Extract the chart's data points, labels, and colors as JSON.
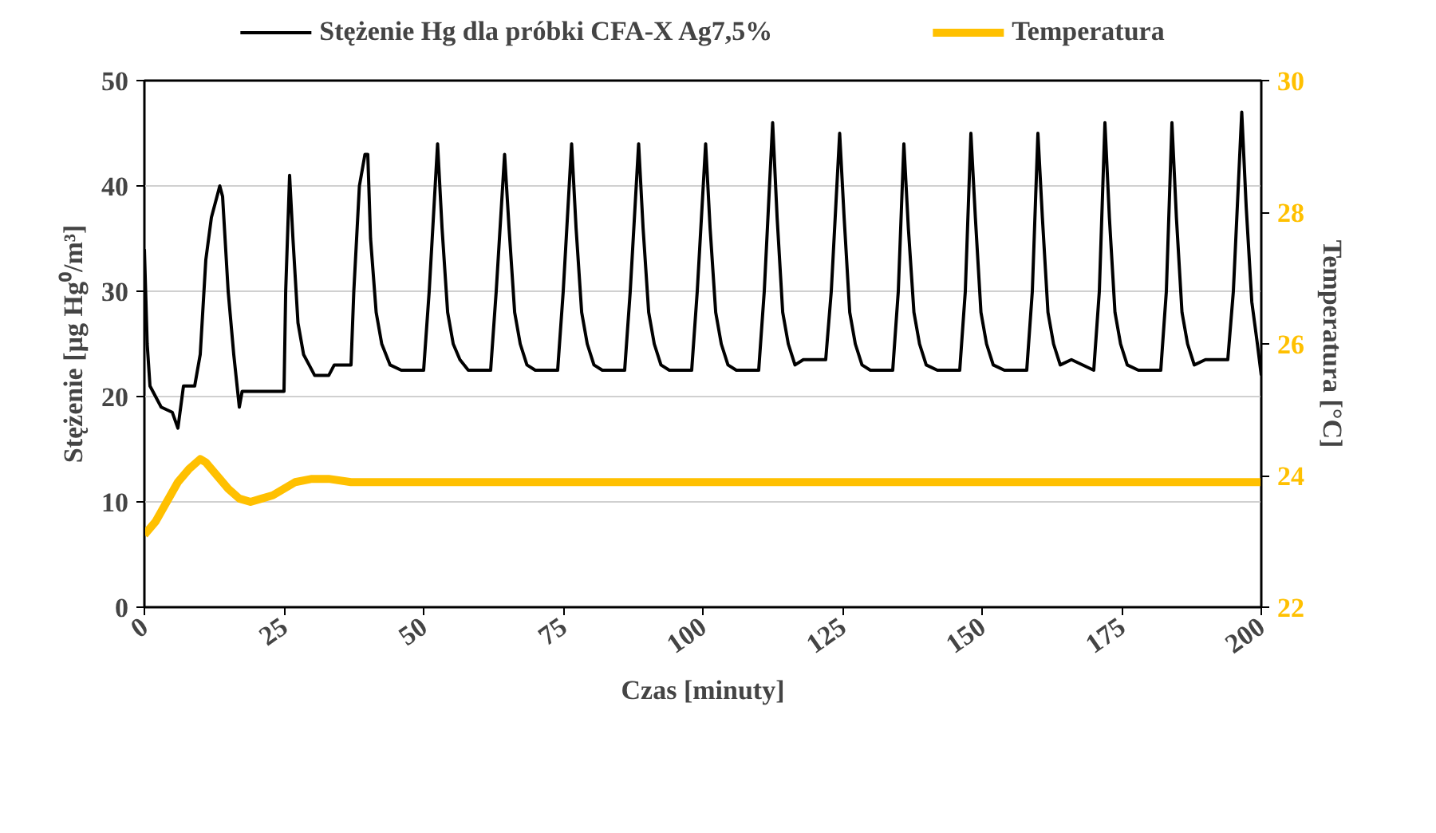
{
  "chart_data": {
    "type": "line",
    "xlabel": "Czas [minuty]",
    "ylabel": "Stężenie [µg Hg⁰/m³]",
    "y2label": "Temperatura [°C]",
    "xlim": [
      0,
      200
    ],
    "xticks": [
      0,
      25,
      50,
      75,
      100,
      125,
      150,
      175,
      200
    ],
    "ylim": [
      0,
      50
    ],
    "yticks": [
      0,
      10,
      20,
      30,
      40,
      50
    ],
    "y2lim": [
      22,
      30
    ],
    "y2ticks": [
      22,
      24,
      26,
      28,
      30
    ],
    "grid": "y",
    "legend": "top",
    "line_style": "solid",
    "marker": "none",
    "series": [
      {
        "name": "Stężenie Hg dla próbki CFA-X Ag7,5%",
        "color": "#000000",
        "x": [
          0,
          0.5,
          1,
          2,
          3,
          5,
          6,
          6.5,
          7,
          9,
          10,
          11,
          12,
          13,
          13.5,
          14,
          15,
          16,
          17,
          17.5,
          25,
          25.3,
          26,
          26.6,
          27.5,
          28.5,
          29.5,
          30.5,
          33,
          34,
          37,
          37.5,
          38.5,
          39.5,
          40,
          40.5,
          41.5,
          42.5,
          44,
          46,
          50,
          51,
          52.5,
          53.3,
          54.3,
          55.3,
          56.5,
          58,
          62,
          63,
          64.5,
          65.3,
          66.3,
          67.3,
          68.5,
          70,
          74,
          75,
          76.5,
          77.3,
          78.3,
          79.3,
          80.5,
          82,
          86,
          87,
          88.5,
          89.3,
          90.3,
          91.3,
          92.5,
          94,
          98,
          99,
          100.5,
          101.3,
          102.3,
          103.3,
          104.5,
          106,
          110,
          111,
          112.5,
          113.3,
          114.3,
          115.3,
          116.5,
          118,
          122,
          123,
          124.5,
          125.3,
          126.3,
          127.3,
          128.5,
          130,
          134,
          135,
          136,
          136.8,
          137.8,
          138.8,
          140,
          142,
          146,
          147,
          148,
          148.8,
          149.8,
          150.8,
          152,
          154,
          158,
          159,
          160,
          160.8,
          161.8,
          162.8,
          164,
          166,
          170,
          171,
          172,
          172.8,
          173.8,
          174.8,
          176,
          178,
          182,
          183,
          184,
          184.8,
          185.8,
          186.8,
          188,
          190,
          194,
          195,
          196.5,
          197.3,
          198.3,
          199.3,
          200
        ],
        "values": [
          34,
          25,
          21,
          20,
          19,
          18.5,
          17,
          19,
          21,
          21,
          24,
          33,
          37,
          39,
          40,
          39,
          30,
          24,
          19,
          20.5,
          20.5,
          30,
          41,
          35,
          27,
          24,
          23,
          22,
          22,
          23,
          23,
          30,
          40,
          43,
          43,
          35,
          28,
          25,
          23,
          22.5,
          22.5,
          30,
          44,
          36,
          28,
          25,
          23.5,
          22.5,
          22.5,
          30,
          43,
          36,
          28,
          25,
          23,
          22.5,
          22.5,
          30,
          44,
          36,
          28,
          25,
          23,
          22.5,
          22.5,
          30,
          44,
          36,
          28,
          25,
          23,
          22.5,
          22.5,
          30,
          44,
          36,
          28,
          25,
          23,
          22.5,
          22.5,
          30,
          46,
          37,
          28,
          25,
          23,
          23.5,
          23.5,
          30,
          45,
          37,
          28,
          25,
          23,
          22.5,
          22.5,
          30,
          44,
          36,
          28,
          25,
          23,
          22.5,
          22.5,
          30,
          45,
          37,
          28,
          25,
          23,
          22.5,
          22.5,
          30,
          45,
          37,
          28,
          25,
          23,
          23.5,
          22.5,
          30,
          46,
          37,
          28,
          25,
          23,
          22.5,
          22.5,
          30,
          46,
          37,
          28,
          25,
          23,
          23.5,
          23.5,
          30,
          47,
          38,
          29,
          25,
          22
        ]
      },
      {
        "name": "Temperatura",
        "color": "#ffc000",
        "axis": "y2",
        "x": [
          0,
          1,
          2,
          4,
          6,
          8,
          10,
          11,
          13,
          15,
          17,
          19,
          21,
          23,
          25,
          27,
          30,
          33,
          37,
          40,
          60,
          80,
          100,
          120,
          140,
          160,
          180,
          200
        ],
        "values": [
          23.1,
          23.2,
          23.3,
          23.6,
          23.9,
          24.1,
          24.25,
          24.2,
          24,
          23.8,
          23.65,
          23.6,
          23.65,
          23.7,
          23.8,
          23.9,
          23.95,
          23.95,
          23.9,
          23.9,
          23.9,
          23.9,
          23.9,
          23.9,
          23.9,
          23.9,
          23.9,
          23.9
        ]
      }
    ]
  }
}
